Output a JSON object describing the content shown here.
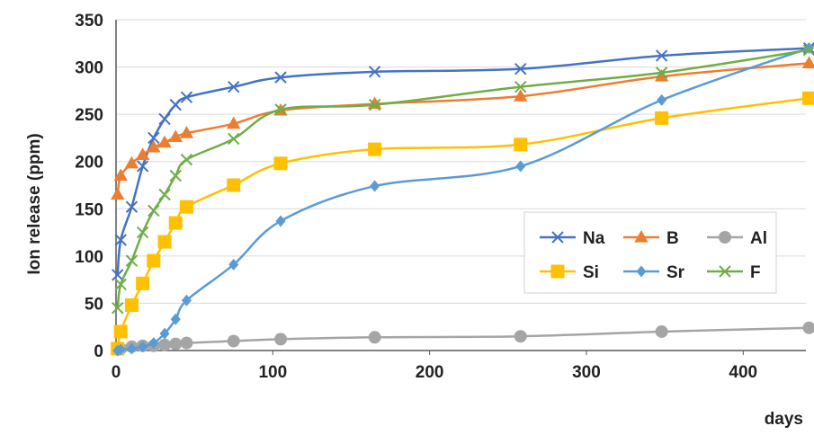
{
  "chart_data": {
    "type": "line",
    "title": "",
    "xlabel": "days",
    "ylabel": "Ion release (ppm)",
    "xlim": [
      0,
      440
    ],
    "ylim": [
      0,
      350
    ],
    "xticks": [
      0,
      100,
      200,
      300,
      400
    ],
    "yticks": [
      0,
      50,
      100,
      150,
      200,
      250,
      300,
      350
    ],
    "grid": "horizontal",
    "legend_position": "center-right",
    "series": [
      {
        "name": "Na",
        "color": "#4472C4",
        "marker": "x",
        "x": [
          1,
          3,
          10,
          17,
          24,
          31,
          38,
          45,
          75,
          105,
          165,
          258,
          348,
          442
        ],
        "y": [
          80,
          117,
          152,
          195,
          225,
          245,
          260,
          268,
          279,
          289,
          295,
          298,
          312,
          320
        ]
      },
      {
        "name": "B",
        "color": "#ED7D31",
        "marker": "triangle",
        "x": [
          1,
          3,
          10,
          17,
          24,
          31,
          38,
          45,
          75,
          105,
          165,
          258,
          348,
          442
        ],
        "y": [
          165,
          185,
          198,
          207,
          215,
          220,
          226,
          230,
          240,
          254,
          261,
          269,
          290,
          304
        ]
      },
      {
        "name": "Al",
        "color": "#A5A5A5",
        "marker": "circle",
        "x": [
          1,
          3,
          10,
          17,
          24,
          31,
          38,
          45,
          75,
          105,
          165,
          258,
          348,
          442
        ],
        "y": [
          1,
          2,
          4,
          5,
          5,
          6,
          7,
          8,
          10,
          12,
          14,
          15,
          20,
          24
        ]
      },
      {
        "name": "Si",
        "color": "#FFC000",
        "marker": "square",
        "x": [
          1,
          3,
          10,
          17,
          24,
          31,
          38,
          45,
          75,
          105,
          165,
          258,
          348,
          442
        ],
        "y": [
          2,
          20,
          48,
          71,
          95,
          115,
          135,
          152,
          175,
          198,
          213,
          218,
          246,
          267
        ]
      },
      {
        "name": "Sr",
        "color": "#5B9BD5",
        "marker": "diamond",
        "x": [
          1,
          3,
          10,
          17,
          24,
          31,
          38,
          45,
          75,
          105,
          165,
          258,
          348,
          442
        ],
        "y": [
          0,
          1,
          2,
          4,
          8,
          18,
          33,
          53,
          91,
          137,
          174,
          195,
          265,
          320
        ]
      },
      {
        "name": "F",
        "color": "#70AD47",
        "marker": "x",
        "x": [
          1,
          3,
          10,
          17,
          24,
          31,
          38,
          45,
          75,
          105,
          165,
          258,
          348,
          442
        ],
        "y": [
          45,
          70,
          95,
          125,
          148,
          165,
          185,
          202,
          224,
          255,
          260,
          279,
          294,
          318
        ]
      }
    ]
  }
}
